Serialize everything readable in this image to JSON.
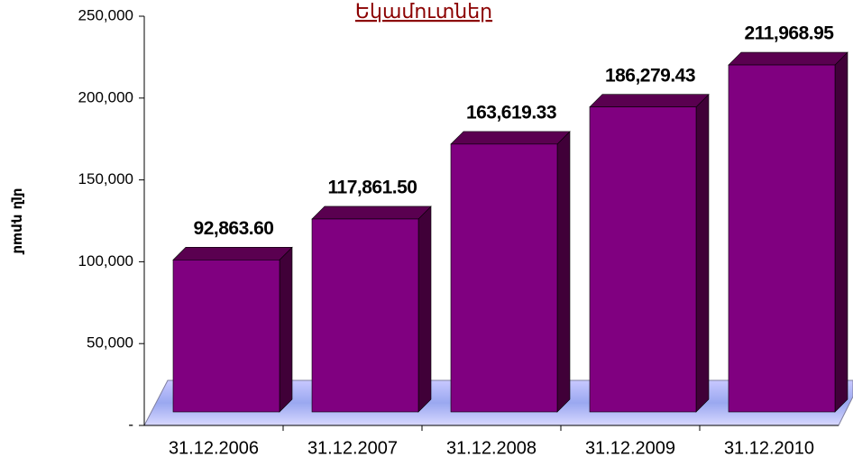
{
  "chart_data": {
    "type": "bar3d",
    "title": "Եկամուտներ",
    "y_label": "մլն դրամ",
    "categories": [
      "31.12.2006",
      "31.12.2007",
      "31.12.2008",
      "31.12.2009",
      "31.12.2010"
    ],
    "values": [
      92863.6,
      117861.5,
      163619.33,
      186279.43,
      211968.95
    ],
    "value_labels": [
      "92,863.60",
      "117,861.50",
      "163,619.33",
      "186,279.43",
      "211,968.95"
    ],
    "color": "#800080",
    "ylim": [
      0,
      250000
    ],
    "yticks": [
      {
        "value": 0,
        "label": "-"
      },
      {
        "value": 50000,
        "label": "50,000"
      },
      {
        "value": 100000,
        "label": "100,000"
      },
      {
        "value": 150000,
        "label": "150,000"
      },
      {
        "value": 200000,
        "label": "200,000"
      },
      {
        "value": 250000,
        "label": "250,000"
      }
    ]
  }
}
